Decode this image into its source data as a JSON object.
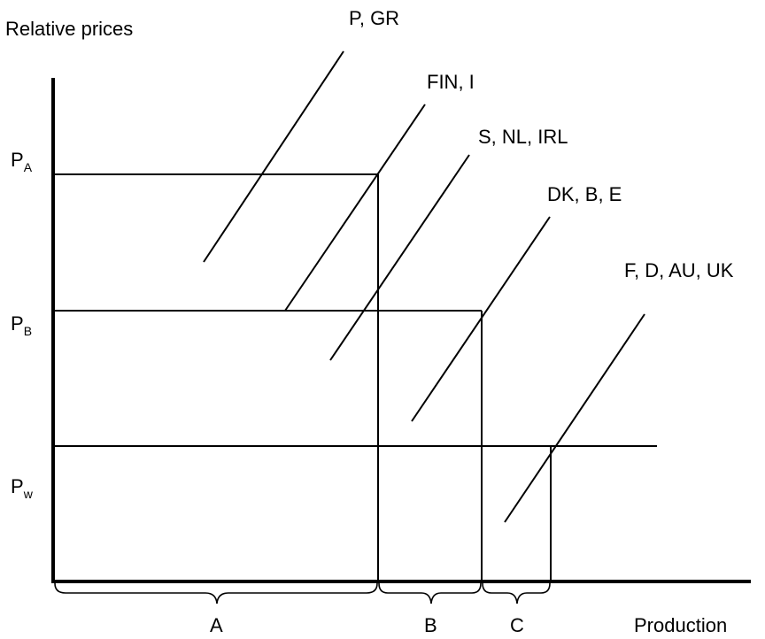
{
  "axis": {
    "y_label": "Relative prices",
    "x_label": "Production"
  },
  "price_levels": {
    "pa": {
      "main": "P",
      "sub": "A"
    },
    "pb": {
      "main": "P",
      "sub": "B"
    },
    "pw": {
      "main": "P",
      "sub": "w"
    }
  },
  "country_groups": [
    "P, GR",
    "FIN, I",
    "S, NL, IRL",
    "DK, B, E",
    "F, D, AU, UK"
  ],
  "brace_labels": [
    "A",
    "B",
    "C"
  ]
}
